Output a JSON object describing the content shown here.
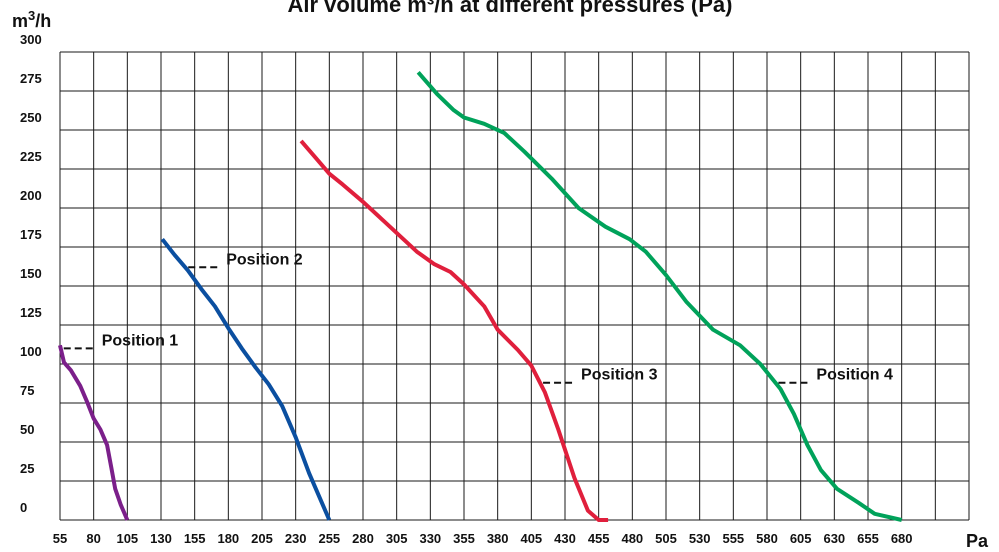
{
  "chart_data": {
    "type": "line",
    "title": "Air volume m³/h at different pressures (Pa)",
    "ylabel": "m³/h",
    "xlabel": "Pa",
    "xlim": [
      55,
      680
    ],
    "ylim": [
      0,
      300
    ],
    "x_ticks": [
      55,
      80,
      105,
      130,
      155,
      180,
      205,
      230,
      255,
      280,
      305,
      330,
      355,
      380,
      405,
      430,
      455,
      480,
      505,
      530,
      555,
      580,
      605,
      630,
      655,
      680
    ],
    "y_ticks": [
      0,
      25,
      50,
      75,
      100,
      125,
      150,
      175,
      200,
      225,
      250,
      275,
      300
    ],
    "grid": true,
    "series": [
      {
        "name": "Position 1",
        "color": "#7b1f8a",
        "points": [
          [
            55,
            112
          ],
          [
            58,
            101
          ],
          [
            63,
            96
          ],
          [
            70,
            86
          ],
          [
            75,
            76
          ],
          [
            80,
            65
          ],
          [
            85,
            58
          ],
          [
            90,
            48
          ],
          [
            93,
            34
          ],
          [
            96,
            20
          ],
          [
            100,
            10
          ],
          [
            105,
            0
          ]
        ]
      },
      {
        "name": "Position 2",
        "color": "#0b4fa0",
        "points": [
          [
            131,
            180
          ],
          [
            140,
            170
          ],
          [
            150,
            160
          ],
          [
            160,
            148
          ],
          [
            170,
            137
          ],
          [
            180,
            123
          ],
          [
            190,
            110
          ],
          [
            200,
            98
          ],
          [
            210,
            87
          ],
          [
            220,
            73
          ],
          [
            230,
            53
          ],
          [
            240,
            30
          ],
          [
            250,
            10
          ],
          [
            255,
            0
          ]
        ]
      },
      {
        "name": "Position 3",
        "color": "#e01f3c",
        "points": [
          [
            234,
            243
          ],
          [
            245,
            232
          ],
          [
            255,
            222
          ],
          [
            265,
            215
          ],
          [
            280,
            204
          ],
          [
            300,
            188
          ],
          [
            320,
            172
          ],
          [
            333,
            164
          ],
          [
            345,
            159
          ],
          [
            355,
            151
          ],
          [
            370,
            137
          ],
          [
            380,
            122
          ],
          [
            395,
            109
          ],
          [
            405,
            99
          ],
          [
            415,
            82
          ],
          [
            425,
            58
          ],
          [
            437,
            27
          ],
          [
            447,
            6
          ],
          [
            455,
            0
          ],
          [
            462,
            0
          ]
        ]
      },
      {
        "name": "Position 4",
        "color": "#00a25a",
        "points": [
          [
            321,
            287
          ],
          [
            335,
            273
          ],
          [
            347,
            263
          ],
          [
            355,
            258
          ],
          [
            370,
            254
          ],
          [
            385,
            248
          ],
          [
            400,
            236
          ],
          [
            420,
            219
          ],
          [
            440,
            200
          ],
          [
            460,
            188
          ],
          [
            478,
            180
          ],
          [
            490,
            172
          ],
          [
            505,
            157
          ],
          [
            520,
            140
          ],
          [
            540,
            122
          ],
          [
            560,
            112
          ],
          [
            575,
            100
          ],
          [
            590,
            84
          ],
          [
            600,
            68
          ],
          [
            610,
            48
          ],
          [
            620,
            32
          ],
          [
            632,
            20
          ],
          [
            648,
            11
          ],
          [
            660,
            4
          ],
          [
            680,
            0
          ]
        ]
      }
    ],
    "annotations": [
      {
        "text": "Position 1",
        "series": 0,
        "at": 110
      },
      {
        "text": "Position 2",
        "series": 1,
        "at": 162
      },
      {
        "text": "Position 3",
        "series": 2,
        "at": 88
      },
      {
        "text": "Position 4",
        "series": 3,
        "at": 88
      }
    ]
  }
}
